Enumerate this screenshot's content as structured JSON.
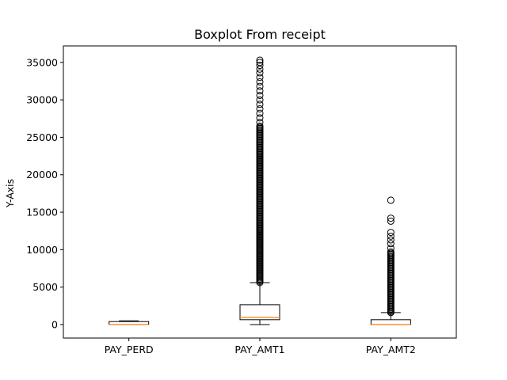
{
  "chart_data": {
    "type": "boxplot",
    "title": "Boxplot From receipt",
    "xlabel": "",
    "ylabel": "Y-Axis",
    "ylim": [
      -1800,
      37200
    ],
    "yticks": [
      0,
      5000,
      10000,
      15000,
      20000,
      25000,
      30000,
      35000
    ],
    "grid": false,
    "categories": [
      "PAY_PERD",
      "PAY_AMT1",
      "PAY_AMT2"
    ],
    "boxes": [
      {
        "name": "PAY_PERD",
        "whisker_low": 0,
        "q1": 0,
        "median": 0,
        "q3": 400,
        "whisker_high": 500,
        "outliers": []
      },
      {
        "name": "PAY_AMT1",
        "whisker_low": 0,
        "q1": 650,
        "median": 950,
        "q3": 2650,
        "whisker_high": 5600,
        "outlier_range": [
          5600,
          26500
        ],
        "outliers": [
          27000,
          27600,
          28200,
          28800,
          29400,
          30000,
          30600,
          31200,
          31800,
          32400,
          33000,
          33600,
          34100,
          34600,
          35000,
          35300
        ]
      },
      {
        "name": "PAY_AMT2",
        "whisker_low": 0,
        "q1": 0,
        "median": 0,
        "q3": 650,
        "whisker_high": 1600,
        "outlier_range": [
          1600,
          9700
        ],
        "outliers": [
          10200,
          10800,
          11300,
          11800,
          12300,
          13800,
          14200,
          16600
        ]
      }
    ],
    "colors": {
      "box": "#000000",
      "median": "#ff7f0e",
      "flier": "#000000"
    }
  }
}
